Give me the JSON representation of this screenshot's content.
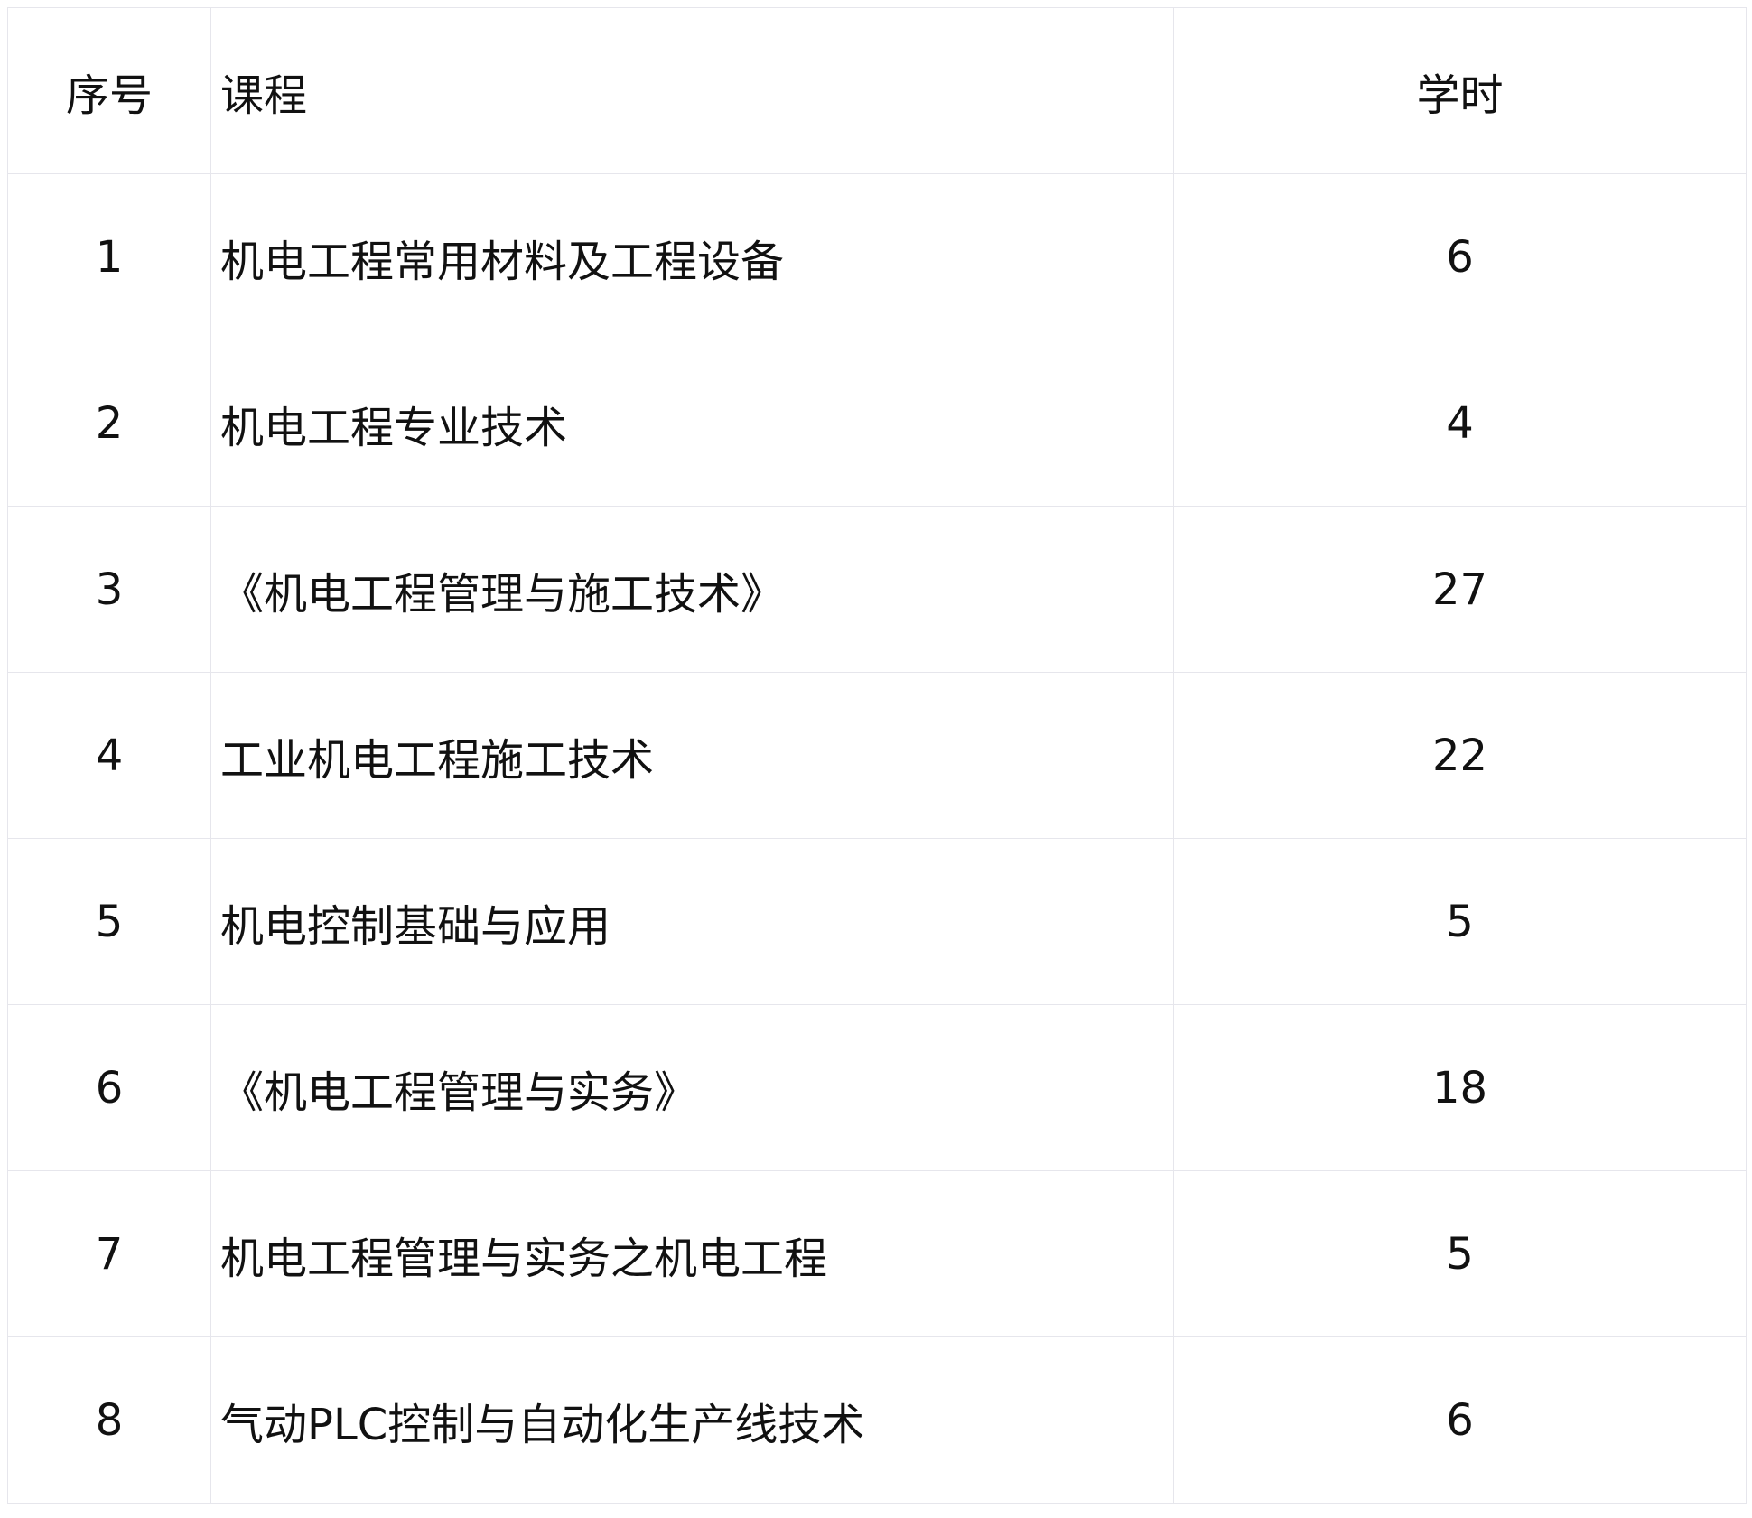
{
  "headers": {
    "index": "序号",
    "course": "课程",
    "hours": "学时"
  },
  "rows": [
    {
      "index": "1",
      "course": "机电工程常用材料及工程设备",
      "hours": "6"
    },
    {
      "index": "2",
      "course": "机电工程专业技术",
      "hours": "4"
    },
    {
      "index": "3",
      "course": "《机电工程管理与施工技术》",
      "hours": "27"
    },
    {
      "index": "4",
      "course": "工业机电工程施工技术",
      "hours": "22"
    },
    {
      "index": "5",
      "course": "机电控制基础与应用",
      "hours": "5"
    },
    {
      "index": "6",
      "course": "《机电工程管理与实务》",
      "hours": "18"
    },
    {
      "index": "7",
      "course": "机电工程管理与实务之机电工程",
      "hours": "5"
    },
    {
      "index": "8",
      "course": "气动PLC控制与自动化生产线技术",
      "hours": "6"
    }
  ]
}
